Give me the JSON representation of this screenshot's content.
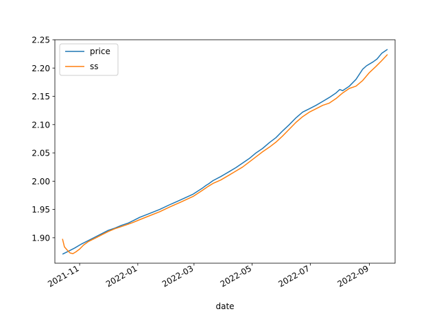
{
  "chart_data": {
    "type": "line",
    "title": "",
    "xlabel": "date",
    "ylabel": "",
    "x_type": "date",
    "xlim": [
      "2021-10-06",
      "2022-09-28"
    ],
    "ylim": [
      1.855,
      2.25
    ],
    "grid": false,
    "legend_position": "top-left",
    "x_ticks": [
      {
        "date": "2021-11-01",
        "label": "2021-11"
      },
      {
        "date": "2022-01-01",
        "label": "2022-01"
      },
      {
        "date": "2022-03-01",
        "label": "2022-03"
      },
      {
        "date": "2022-05-01",
        "label": "2022-05"
      },
      {
        "date": "2022-07-01",
        "label": "2022-07"
      },
      {
        "date": "2022-09-01",
        "label": "2022-09"
      }
    ],
    "y_ticks": [
      {
        "value": 1.9,
        "label": "1.90"
      },
      {
        "value": 1.95,
        "label": "1.95"
      },
      {
        "value": 2.0,
        "label": "2.00"
      },
      {
        "value": 2.05,
        "label": "2.05"
      },
      {
        "value": 2.1,
        "label": "2.10"
      },
      {
        "value": 2.15,
        "label": "2.15"
      },
      {
        "value": 2.2,
        "label": "2.20"
      },
      {
        "value": 2.25,
        "label": "2.25"
      }
    ],
    "series": [
      {
        "name": "price",
        "color": "#1f77b4",
        "x": [
          "2021-10-14",
          "2021-10-20",
          "2021-10-27",
          "2021-11-03",
          "2021-11-10",
          "2021-11-17",
          "2021-11-24",
          "2021-12-01",
          "2021-12-08",
          "2021-12-15",
          "2021-12-22",
          "2021-12-27",
          "2022-01-03",
          "2022-01-12",
          "2022-01-24",
          "2022-02-03",
          "2022-02-15",
          "2022-02-28",
          "2022-03-10",
          "2022-03-14",
          "2022-03-16",
          "2022-03-21",
          "2022-03-29",
          "2022-04-07",
          "2022-04-14",
          "2022-04-21",
          "2022-04-28",
          "2022-05-05",
          "2022-05-12",
          "2022-05-19",
          "2022-05-26",
          "2022-06-02",
          "2022-06-09",
          "2022-06-16",
          "2022-06-23",
          "2022-06-30",
          "2022-07-07",
          "2022-07-14",
          "2022-07-21",
          "2022-07-28",
          "2022-08-01",
          "2022-08-04",
          "2022-08-11",
          "2022-08-18",
          "2022-08-25",
          "2022-08-29",
          "2022-09-05",
          "2022-09-09",
          "2022-09-14",
          "2022-09-20"
        ],
        "values": [
          1.871,
          1.876,
          1.882,
          1.889,
          1.895,
          1.901,
          1.907,
          1.913,
          1.917,
          1.922,
          1.926,
          1.93,
          1.936,
          1.942,
          1.95,
          1.958,
          1.967,
          1.977,
          1.988,
          1.993,
          1.995,
          2.001,
          2.008,
          2.017,
          2.024,
          2.032,
          2.04,
          2.05,
          2.058,
          2.068,
          2.077,
          2.089,
          2.1,
          2.112,
          2.122,
          2.128,
          2.134,
          2.141,
          2.148,
          2.156,
          2.162,
          2.16,
          2.168,
          2.18,
          2.198,
          2.204,
          2.211,
          2.216,
          2.226,
          2.233
        ]
      },
      {
        "name": "ss",
        "color": "#ff7f0e",
        "x": [
          "2021-10-14",
          "2021-10-16",
          "2021-10-19",
          "2021-10-22",
          "2021-10-25",
          "2021-10-28",
          "2021-11-01",
          "2021-11-05",
          "2021-11-10",
          "2021-11-17",
          "2021-11-24",
          "2021-12-01",
          "2021-12-08",
          "2021-12-15",
          "2021-12-22",
          "2021-12-27",
          "2022-01-03",
          "2022-01-12",
          "2022-01-24",
          "2022-02-03",
          "2022-02-15",
          "2022-02-28",
          "2022-03-10",
          "2022-03-16",
          "2022-03-21",
          "2022-03-29",
          "2022-04-07",
          "2022-04-14",
          "2022-04-21",
          "2022-04-28",
          "2022-05-05",
          "2022-05-12",
          "2022-05-19",
          "2022-05-26",
          "2022-06-02",
          "2022-06-09",
          "2022-06-16",
          "2022-06-23",
          "2022-06-30",
          "2022-07-07",
          "2022-07-14",
          "2022-07-21",
          "2022-07-28",
          "2022-08-04",
          "2022-08-11",
          "2022-08-18",
          "2022-08-25",
          "2022-09-01",
          "2022-09-08",
          "2022-09-14",
          "2022-09-20"
        ],
        "values": [
          1.898,
          1.884,
          1.878,
          1.873,
          1.872,
          1.875,
          1.88,
          1.887,
          1.893,
          1.899,
          1.905,
          1.911,
          1.916,
          1.92,
          1.924,
          1.927,
          1.932,
          1.938,
          1.946,
          1.954,
          1.963,
          1.973,
          1.984,
          1.991,
          1.996,
          2.002,
          2.011,
          2.018,
          2.025,
          2.034,
          2.043,
          2.052,
          2.06,
          2.069,
          2.08,
          2.092,
          2.104,
          2.114,
          2.122,
          2.128,
          2.134,
          2.138,
          2.146,
          2.156,
          2.164,
          2.168,
          2.178,
          2.192,
          2.203,
          2.213,
          2.224
        ]
      }
    ]
  }
}
